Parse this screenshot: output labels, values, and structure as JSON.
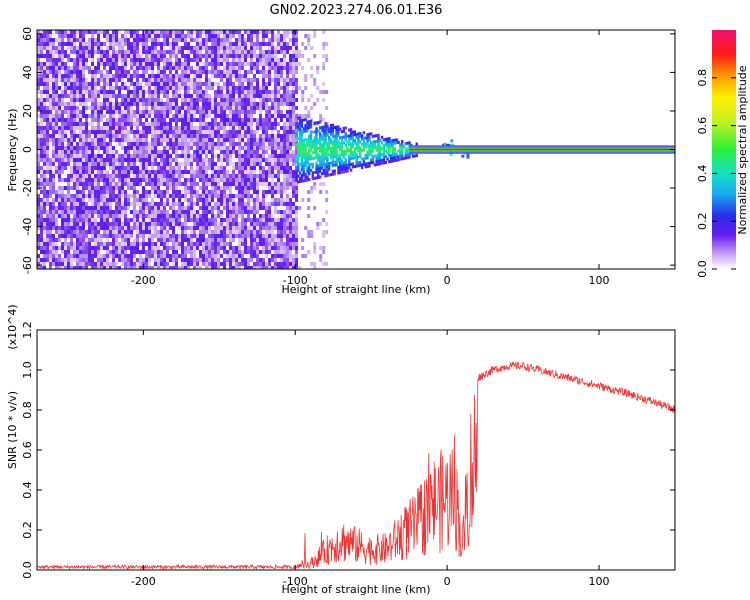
{
  "title": "GN02.2023.274.06.01.E36",
  "chart_data": [
    {
      "type": "heatmap",
      "xlabel": "Height of straight line (km)",
      "ylabel": "Frequency (Hz)",
      "xlim": [
        -270,
        150
      ],
      "ylim": [
        -62,
        62
      ],
      "x_ticks": [
        -200,
        -100,
        0,
        100
      ],
      "y_ticks": [
        -60,
        -40,
        -20,
        0,
        20,
        40,
        60
      ],
      "colorbar": {
        "label": "Normalized spectral amplitude",
        "range": [
          0,
          1
        ],
        "ticks": [
          "0.0",
          "0.2",
          "0.4",
          "0.6",
          "0.8"
        ]
      },
      "regions": [
        {
          "x_range": [
            -270,
            -100
          ],
          "description_level": "broadband noise, low amplitude 0.05-0.2"
        },
        {
          "x_range": [
            -100,
            -25
          ],
          "description_level": "signal band near 0 Hz, amplitude 0.3-0.5"
        },
        {
          "x_range": [
            -25,
            150
          ],
          "description_level": "narrow line at 0 Hz, amplitude ~0.9"
        }
      ]
    },
    {
      "type": "line",
      "xlabel": "Height of straight line (km)",
      "ylabel": "SNR (10 * v/v)",
      "y_multiplier": "(x10^4)",
      "xlim": [
        -270,
        150
      ],
      "ylim": [
        0,
        1.2
      ],
      "x_ticks": [
        -200,
        -100,
        0,
        100
      ],
      "y_ticks": [
        "0.0",
        "0.2",
        "0.4",
        "0.6",
        "0.8",
        "1.0",
        "1.2"
      ],
      "color": "#ee3333",
      "envelope": {
        "x": [
          -270,
          -100,
          -90,
          -80,
          -70,
          -60,
          -50,
          -40,
          -30,
          -20,
          -10,
          0,
          5,
          10,
          15,
          20,
          30,
          40,
          50,
          60,
          80,
          100,
          120,
          140,
          150
        ],
        "y": [
          0.015,
          0.015,
          0.05,
          0.15,
          0.24,
          0.2,
          0.16,
          0.17,
          0.28,
          0.36,
          0.52,
          0.57,
          0.65,
          0.18,
          0.75,
          0.96,
          1.0,
          1.02,
          1.02,
          1.0,
          0.96,
          0.92,
          0.88,
          0.83,
          0.8
        ]
      }
    }
  ]
}
